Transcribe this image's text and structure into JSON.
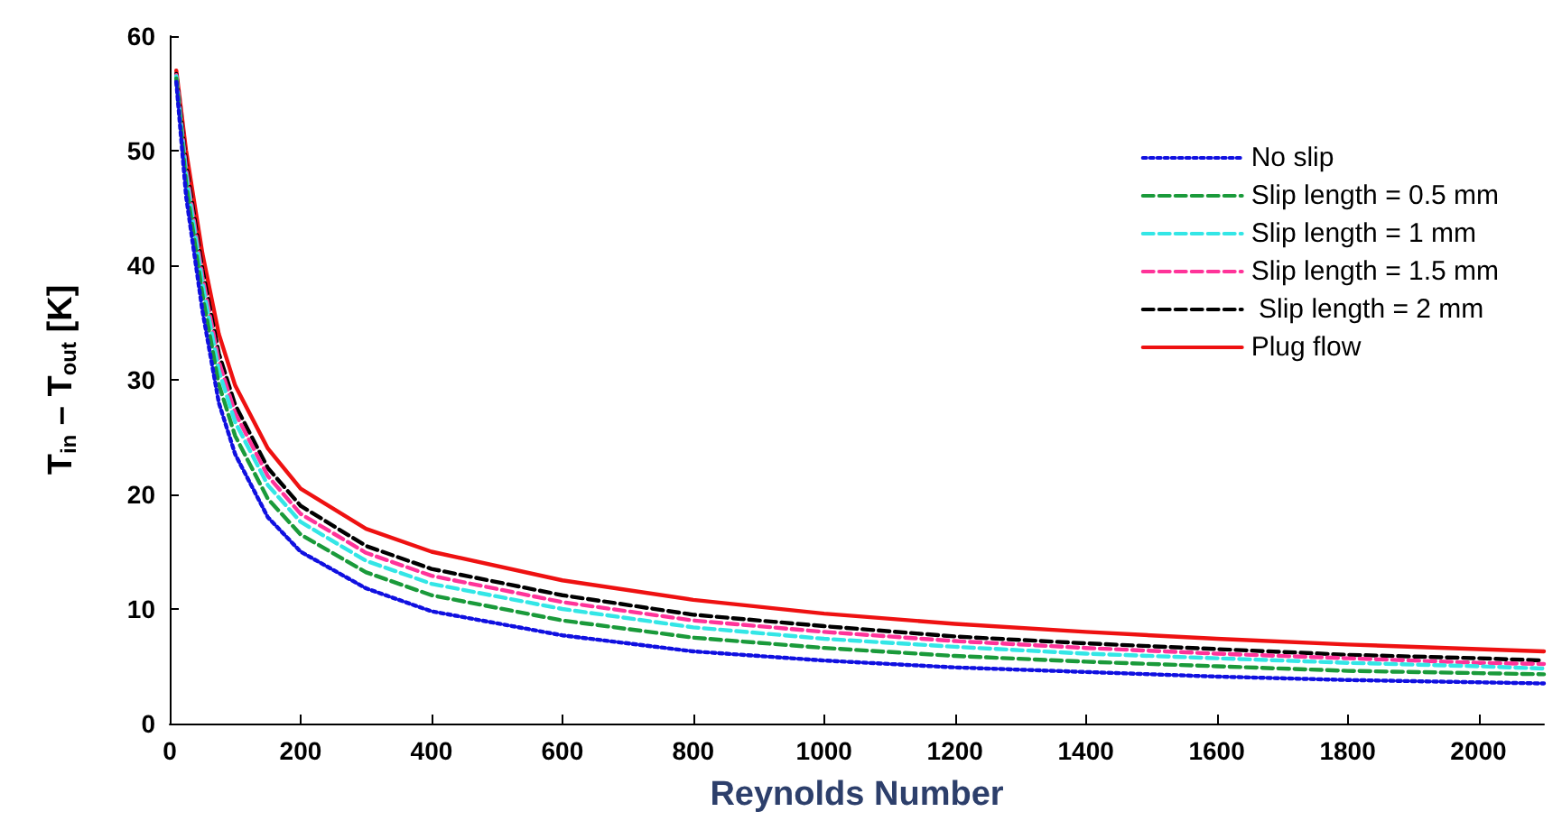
{
  "chart_data": {
    "type": "line",
    "xlabel": "Reynolds Number",
    "ylabel": "T$_{in}$ – T$_{out}$ [K]",
    "x": [
      10,
      25,
      50,
      75,
      100,
      150,
      200,
      300,
      400,
      600,
      800,
      1000,
      1200,
      1400,
      1600,
      1800,
      2000,
      2100
    ],
    "series": [
      {
        "name": "No slip",
        "color": "#1010e0",
        "line_style": "dotted",
        "values": [
          56,
          46,
          36,
          28,
          23.5,
          18,
          15,
          11.8,
          9.8,
          7.7,
          6.3,
          5.5,
          4.9,
          4.5,
          4.1,
          3.8,
          3.6,
          3.5
        ]
      },
      {
        "name": "Slip length = 0.5 mm",
        "color": "#1a9a3a",
        "line_style": "dashed",
        "values": [
          56.3,
          47.1,
          37.4,
          29.6,
          25.1,
          19.6,
          16.5,
          13.2,
          11.2,
          9.0,
          7.5,
          6.6,
          5.9,
          5.4,
          5.0,
          4.6,
          4.4,
          4.3
        ]
      },
      {
        "name": "Slip length = 1 mm",
        "color": "#33e6e6",
        "line_style": "dashed",
        "values": [
          56.5,
          47.9,
          38.4,
          30.8,
          26.3,
          20.8,
          17.6,
          14.2,
          12.2,
          10.0,
          8.4,
          7.4,
          6.7,
          6.1,
          5.7,
          5.3,
          5.0,
          4.8
        ]
      },
      {
        "name": "Slip length = 1.5 mm",
        "color": "#ff3399",
        "line_style": "dashed",
        "values": [
          56.6,
          48.4,
          39,
          31.6,
          27.1,
          21.6,
          18.3,
          14.9,
          12.9,
          10.6,
          9.0,
          8.0,
          7.2,
          6.6,
          6.1,
          5.7,
          5.3,
          5.2
        ]
      },
      {
        "name": " Slip length = 2 mm",
        "color": "#000000",
        "line_style": "dashed",
        "values": [
          56.7,
          48.9,
          39.6,
          32.3,
          27.8,
          22.3,
          19,
          15.5,
          13.5,
          11.2,
          9.5,
          8.5,
          7.6,
          7.0,
          6.5,
          6.0,
          5.7,
          5.5
        ]
      },
      {
        "name": "Plug flow",
        "color": "#ee1111",
        "line_style": "solid",
        "values": [
          57,
          50,
          41,
          34,
          29.5,
          24,
          20.5,
          17,
          15,
          12.5,
          10.8,
          9.6,
          8.7,
          8,
          7.4,
          6.9,
          6.5,
          6.3
        ]
      }
    ],
    "xlim": [
      0,
      2100
    ],
    "xticks": [
      0,
      200,
      400,
      600,
      800,
      1000,
      1200,
      1400,
      1600,
      1800,
      2000
    ],
    "ylim": [
      0,
      60
    ],
    "yticks": [
      0,
      10,
      20,
      30,
      40,
      50,
      60
    ],
    "grid": false,
    "legend": "top right",
    "marker": "none"
  }
}
